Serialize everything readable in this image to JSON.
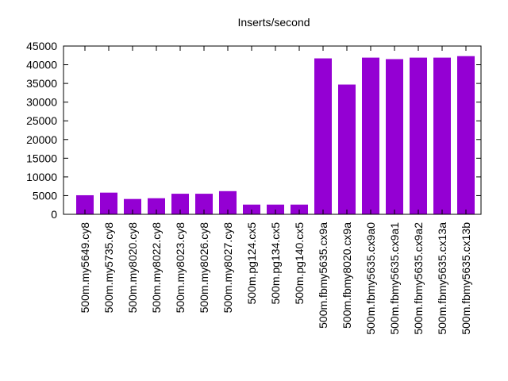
{
  "chart_data": {
    "type": "bar",
    "title": "Inserts/second",
    "xlabel": "",
    "ylabel": "",
    "categories": [
      "500m.my5649.cy8",
      "500m.my5735.cy8",
      "500m.my8020.cy8",
      "500m.my8022.cy8",
      "500m.my8023.cy8",
      "500m.my8026.cy8",
      "500m.my8027.cy8",
      "500m.pg124.cx5",
      "500m.pg134.cx5",
      "500m.pg140.cx5",
      "500m.fbmy5635.cx9a",
      "500m.fbmy8020.cx9a",
      "500m.fbmy5635.cx9a0",
      "500m.fbmy5635.cx9a1",
      "500m.fbmy5635.cx9a2",
      "500m.fbmy5635.cx13a",
      "500m.fbmy5635.cx13b"
    ],
    "values": [
      5100,
      5800,
      4100,
      4300,
      5500,
      5500,
      6200,
      2600,
      2600,
      2600,
      41700,
      34700,
      41900,
      41500,
      41900,
      41900,
      42300
    ],
    "ylim": [
      0,
      45000
    ],
    "yticks": [
      0,
      5000,
      10000,
      15000,
      20000,
      25000,
      30000,
      35000,
      40000,
      45000
    ],
    "grid": false,
    "bar_color": "#9400d3",
    "axis_color": "#000000"
  }
}
